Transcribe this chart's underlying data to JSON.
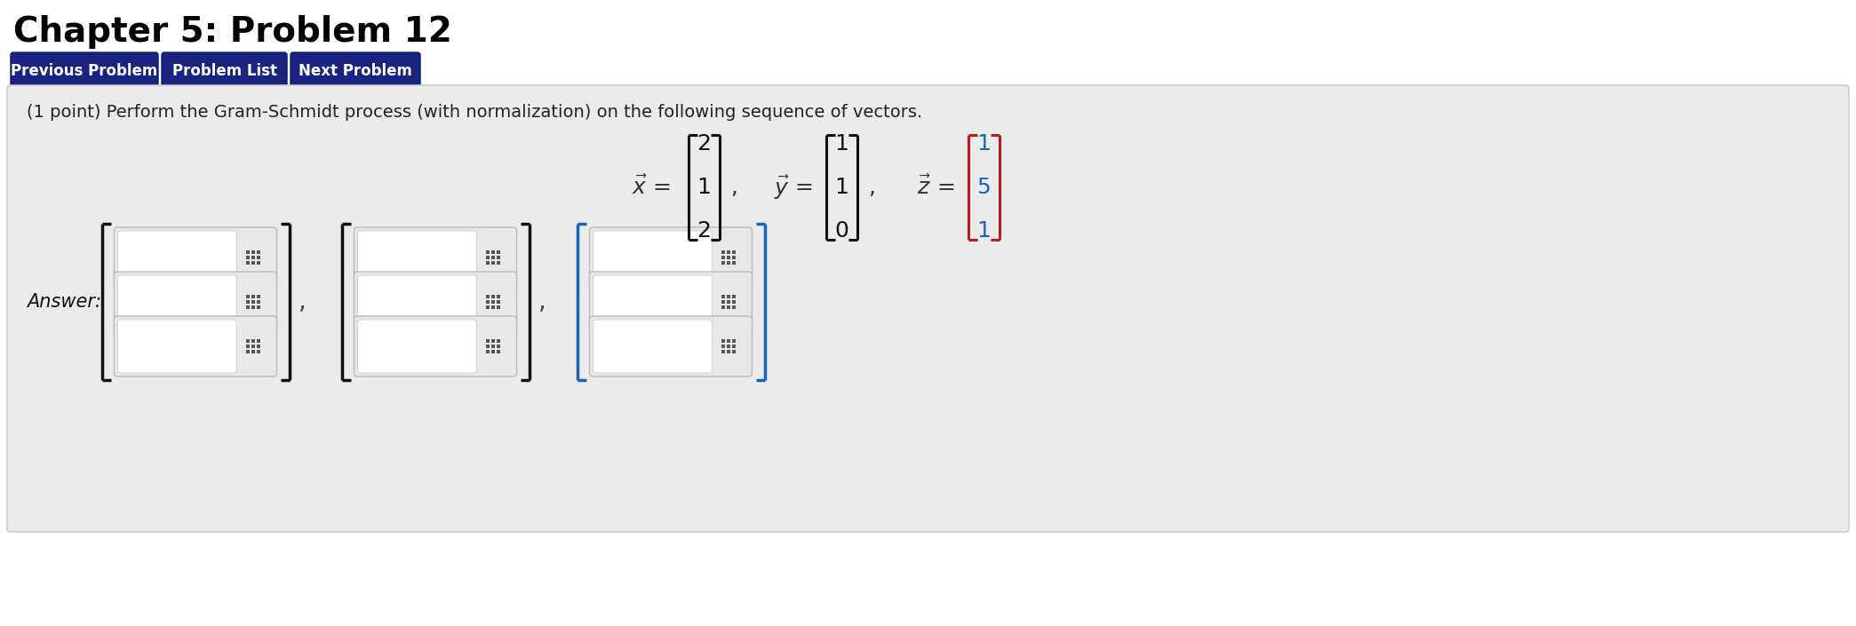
{
  "title": "Chapter 5: Problem 12",
  "title_fontsize": 28,
  "title_fontweight": "bold",
  "bg_color": "#ffffff",
  "panel_bg": "#ebebeb",
  "button_color": "#1a237e",
  "button_text_color": "#ffffff",
  "buttons": [
    "Previous Problem",
    "Problem List",
    "Next Problem"
  ],
  "problem_text": "(1 point) Perform the Gram-Schmidt process (with normalization) on the following sequence of vectors.",
  "problem_text_fontsize": 14,
  "answer_label": "Answer:",
  "answer_label_fontsize": 15,
  "vector_x": [
    "2",
    "1",
    "2"
  ],
  "vector_y": [
    "1",
    "1",
    "0"
  ],
  "vector_z": [
    "1",
    "5",
    "1"
  ],
  "panel_border_color": "#cccccc",
  "bracket_color_dark": "#111111",
  "bracket_color_blue": "#1565c0",
  "bracket_color_red": "#b71c1c",
  "grid_icon_color": "#555555",
  "input_box_white": "#ffffff",
  "input_box_gray": "#e8e8e8"
}
